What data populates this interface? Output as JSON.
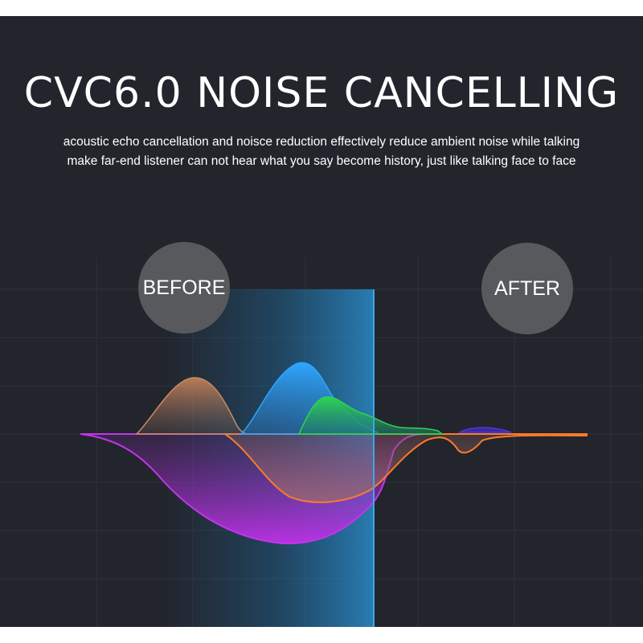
{
  "banner": {
    "title": "CVC6.0 NOISE CANCELLING",
    "description_line1": "acoustic echo cancellation and noisce reduction effectively reduce ambient noise while talking",
    "description_line2": "make far-end listener can not hear what you say become history, just like talking face to face"
  },
  "badges": {
    "before_label": "BEFORE",
    "after_label": "AFTER"
  },
  "colors": {
    "background": "#22252c",
    "badge_fill": "#58595c",
    "divider": "#3aa8e6",
    "wave_blue": "#2ea6ff",
    "wave_green": "#2fd44e",
    "wave_orange": "#ff7a2a",
    "wave_purple": "#b02be0"
  }
}
